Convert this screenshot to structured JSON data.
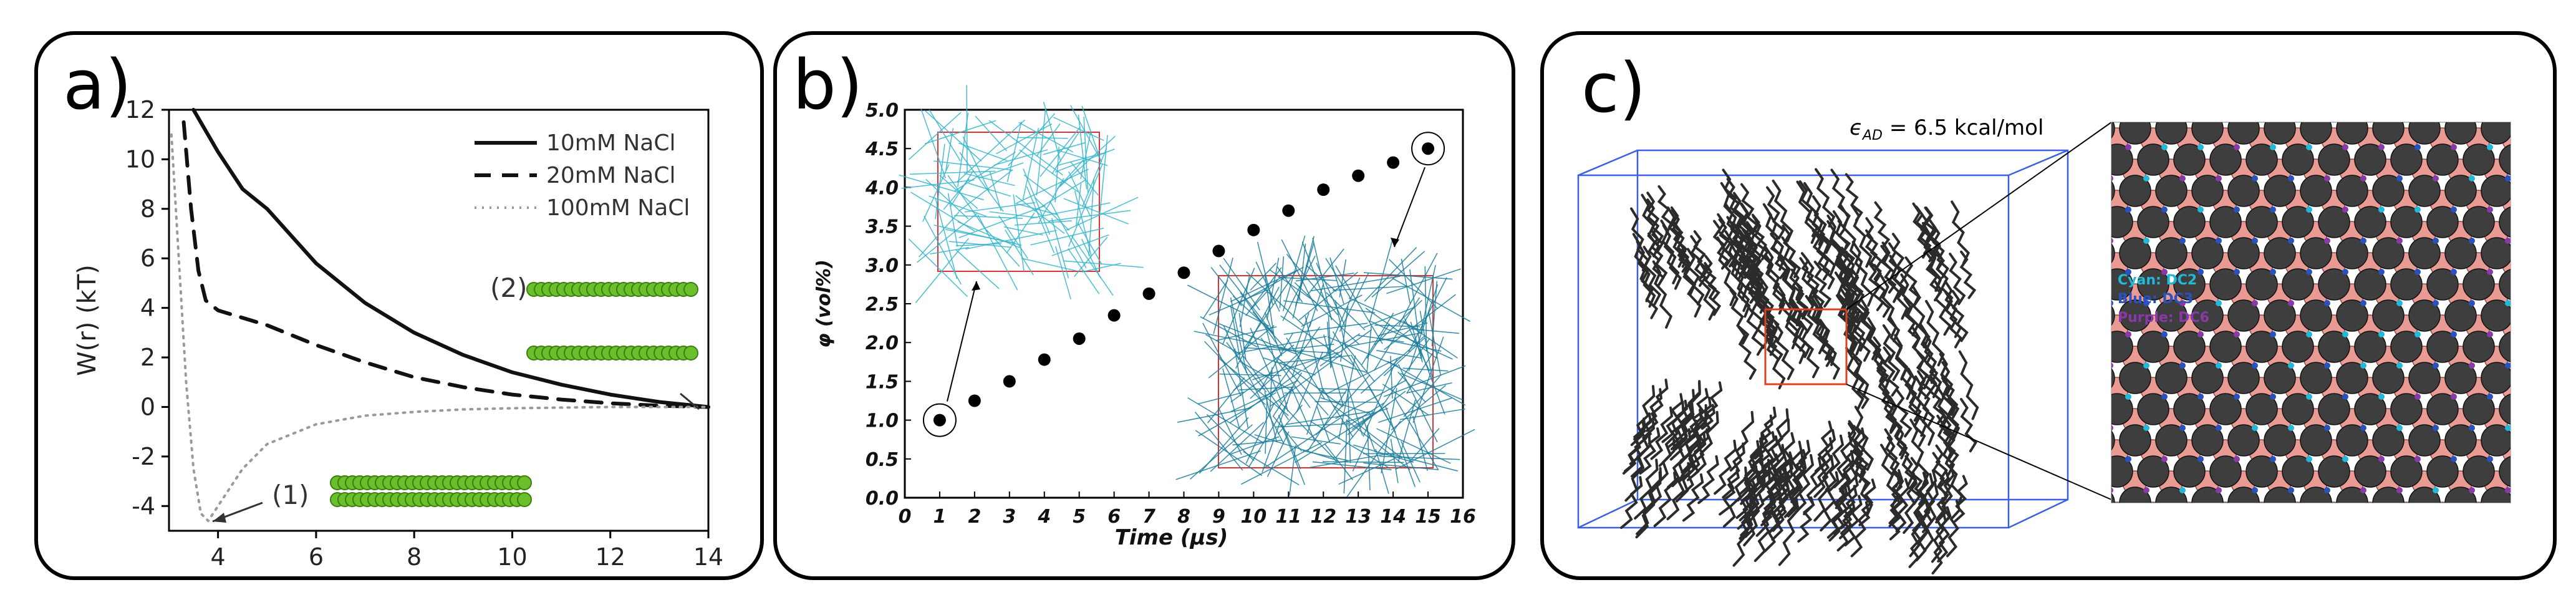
{
  "panels": {
    "a": {
      "label": "a)",
      "chart_data": {
        "type": "line",
        "ylabel": "W(r) (kT)",
        "xlim": [
          3,
          14
        ],
        "ylim": [
          -5,
          12
        ],
        "xticks": [
          4,
          6,
          8,
          10,
          12,
          14
        ],
        "yticks": [
          -4,
          -2,
          0,
          2,
          4,
          6,
          8,
          10,
          12
        ],
        "series": [
          {
            "name": "10mM NaCl",
            "style": "solid",
            "x": [
              3.5,
              4.0,
              4.5,
              5.0,
              6.0,
              7.0,
              8.0,
              9.0,
              10.0,
              11.0,
              12.0,
              13.0,
              14.0
            ],
            "y": [
              12,
              10.3,
              8.8,
              8.0,
              5.8,
              4.2,
              3.0,
              2.1,
              1.4,
              0.9,
              0.5,
              0.2,
              0.0
            ]
          },
          {
            "name": "20mM NaCl",
            "style": "dashed",
            "x": [
              3.3,
              3.45,
              3.6,
              3.75,
              4.0,
              5.0,
              6.0,
              7.0,
              8.0,
              9.0,
              10.0,
              11.0,
              12.0,
              13.0,
              14.0
            ],
            "y": [
              11.5,
              8.0,
              5.5,
              4.3,
              3.9,
              3.3,
              2.5,
              1.8,
              1.2,
              0.8,
              0.5,
              0.3,
              0.15,
              0.05,
              0.0
            ]
          },
          {
            "name": "100mM NaCl",
            "style": "dotted",
            "x": [
              3.05,
              3.2,
              3.35,
              3.5,
              3.65,
              3.8,
              4.0,
              4.5,
              5.0,
              6.0,
              7.0,
              8.0,
              9.0,
              10.0,
              12.0,
              14.0
            ],
            "y": [
              11.0,
              6.0,
              1.0,
              -2.5,
              -4.3,
              -4.6,
              -4.0,
              -2.5,
              -1.5,
              -0.7,
              -0.35,
              -0.2,
              -0.1,
              -0.05,
              0.0,
              0.0
            ]
          }
        ],
        "annotations": [
          "(1)",
          "(2)"
        ]
      }
    },
    "b": {
      "label": "b)",
      "chart_data": {
        "type": "scatter",
        "xlabel": "Time (μs)",
        "ylabel": "φ (vol%)",
        "xlim": [
          0,
          16
        ],
        "ylim": [
          0,
          5
        ],
        "xticks": [
          0,
          1,
          2,
          3,
          4,
          5,
          6,
          7,
          8,
          9,
          10,
          11,
          12,
          13,
          14,
          15,
          16
        ],
        "yticks": [
          "0.0",
          "0.5",
          "1.0",
          "1.5",
          "2.0",
          "2.5",
          "3.0",
          "3.5",
          "4.0",
          "4.5",
          "5.0"
        ],
        "x": [
          1,
          2,
          3,
          4,
          5,
          6,
          7,
          8,
          9,
          10,
          11,
          12,
          13,
          14,
          15
        ],
        "y": [
          1.0,
          1.25,
          1.5,
          1.78,
          2.05,
          2.35,
          2.63,
          2.9,
          3.18,
          3.45,
          3.7,
          3.97,
          4.15,
          4.32,
          4.5
        ]
      }
    },
    "c": {
      "label": "c)",
      "epsilon_symbol": "ϵ",
      "epsilon_sub": "AD",
      "epsilon_value": " = 6.5 kcal/mol",
      "legend": [
        {
          "text": "Cyan: DC2",
          "color": "#22b8d8"
        },
        {
          "text": "Blue: DC3",
          "color": "#2a52be"
        },
        {
          "text": "Purple: DC6",
          "color": "#8a3aa8"
        }
      ]
    }
  }
}
